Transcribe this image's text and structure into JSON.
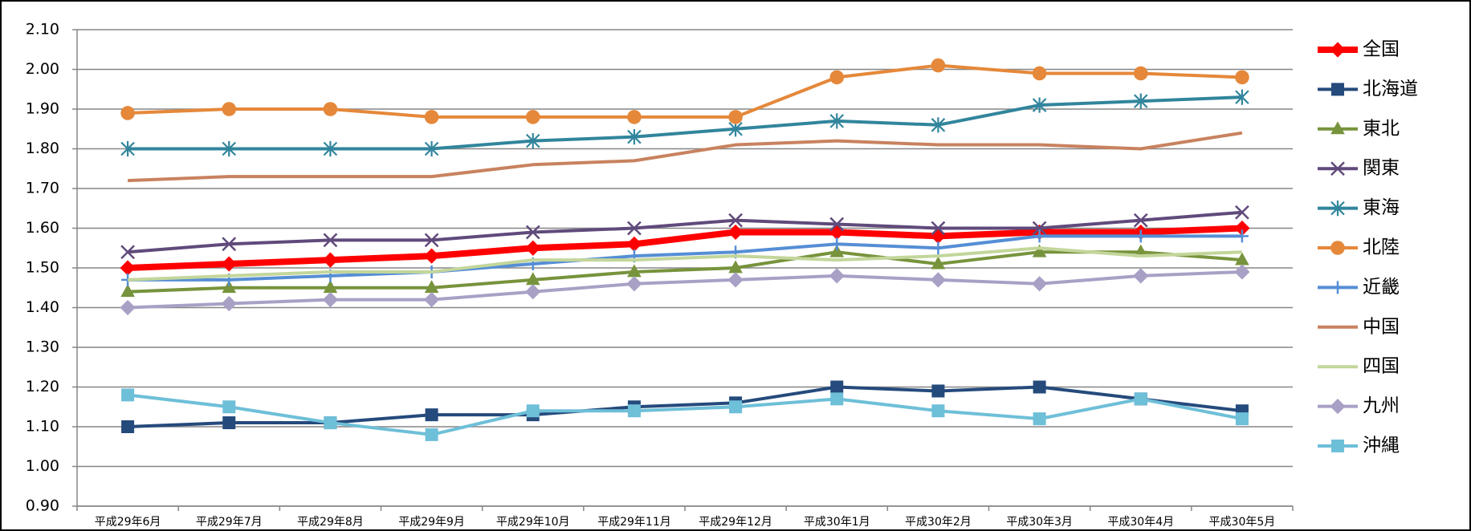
{
  "chart_data": {
    "type": "line",
    "categories": [
      "平成29年6月",
      "平成29年7月",
      "平成29年8月",
      "平成29年9月",
      "平成29年10月",
      "平成29年11月",
      "平成29年12月",
      "平成30年1月",
      "平成30年2月",
      "平成30年3月",
      "平成30年4月",
      "平成30年5月"
    ],
    "ylim": [
      0.9,
      2.1
    ],
    "yticks": [
      {
        "value": 0.9,
        "label": "0.90"
      },
      {
        "value": 1.0,
        "label": "1.00"
      },
      {
        "value": 1.1,
        "label": "1.10"
      },
      {
        "value": 1.2,
        "label": "1.20"
      },
      {
        "value": 1.3,
        "label": "1.30"
      },
      {
        "value": 1.4,
        "label": "1.40"
      },
      {
        "value": 1.5,
        "label": "1.50"
      },
      {
        "value": 1.6,
        "label": "1.60"
      },
      {
        "value": 1.7,
        "label": "1.70"
      },
      {
        "value": 1.8,
        "label": "1.80"
      },
      {
        "value": 1.9,
        "label": "1.90"
      },
      {
        "value": 2.0,
        "label": "2.00"
      },
      {
        "value": 2.1,
        "label": "2.10"
      }
    ],
    "grid": true,
    "legend": "right",
    "series": [
      {
        "name": "全国",
        "color": "#ff0000",
        "marker": "diamond",
        "line_width": 8,
        "values": [
          1.5,
          1.51,
          1.52,
          1.53,
          1.55,
          1.56,
          1.59,
          1.59,
          1.58,
          1.59,
          1.59,
          1.6
        ]
      },
      {
        "name": "北海道",
        "color": "#254a7c",
        "marker": "square",
        "line_width": 4,
        "values": [
          1.1,
          1.11,
          1.11,
          1.13,
          1.13,
          1.15,
          1.16,
          1.2,
          1.19,
          1.2,
          1.17,
          1.14
        ]
      },
      {
        "name": "東北",
        "color": "#77933c",
        "marker": "triangle",
        "line_width": 4,
        "values": [
          1.44,
          1.45,
          1.45,
          1.45,
          1.47,
          1.49,
          1.5,
          1.54,
          1.51,
          1.54,
          1.54,
          1.52
        ]
      },
      {
        "name": "関東",
        "color": "#604a7b",
        "marker": "x",
        "line_width": 4,
        "values": [
          1.54,
          1.56,
          1.57,
          1.57,
          1.59,
          1.6,
          1.62,
          1.61,
          1.6,
          1.6,
          1.62,
          1.64
        ]
      },
      {
        "name": "東海",
        "color": "#31859c",
        "marker": "star",
        "line_width": 4,
        "values": [
          1.8,
          1.8,
          1.8,
          1.8,
          1.82,
          1.83,
          1.85,
          1.87,
          1.86,
          1.91,
          1.92,
          1.93
        ]
      },
      {
        "name": "北陸",
        "color": "#e5883a",
        "marker": "circle",
        "line_width": 4,
        "values": [
          1.89,
          1.9,
          1.9,
          1.88,
          1.88,
          1.88,
          1.88,
          1.98,
          2.01,
          1.99,
          1.99,
          1.98
        ]
      },
      {
        "name": "近畿",
        "color": "#558ed5",
        "marker": "plus",
        "line_width": 4,
        "values": [
          1.47,
          1.47,
          1.48,
          1.49,
          1.51,
          1.53,
          1.54,
          1.56,
          1.55,
          1.58,
          1.58,
          1.58
        ]
      },
      {
        "name": "中国",
        "color": "#c8825f",
        "marker": "none",
        "line_width": 4,
        "values": [
          1.72,
          1.73,
          1.73,
          1.73,
          1.76,
          1.77,
          1.81,
          1.82,
          1.81,
          1.81,
          1.8,
          1.84
        ]
      },
      {
        "name": "四国",
        "color": "#c3d69b",
        "marker": "none",
        "line_width": 4,
        "values": [
          1.47,
          1.48,
          1.49,
          1.49,
          1.52,
          1.52,
          1.53,
          1.52,
          1.53,
          1.55,
          1.53,
          1.54
        ]
      },
      {
        "name": "九州",
        "color": "#a9a0c6",
        "marker": "diamond",
        "line_width": 4,
        "values": [
          1.4,
          1.41,
          1.42,
          1.42,
          1.44,
          1.46,
          1.47,
          1.48,
          1.47,
          1.46,
          1.48,
          1.49
        ]
      },
      {
        "name": "沖縄",
        "color": "#6ebfd8",
        "marker": "square",
        "line_width": 4,
        "values": [
          1.18,
          1.15,
          1.11,
          1.08,
          1.14,
          1.14,
          1.15,
          1.17,
          1.14,
          1.12,
          1.17,
          1.12
        ]
      }
    ]
  }
}
